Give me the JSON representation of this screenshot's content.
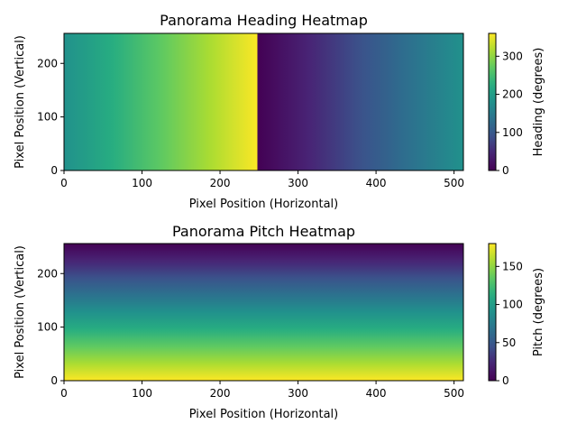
{
  "chart_data": [
    {
      "type": "heatmap",
      "title": "Panorama Heading Heatmap",
      "xlabel": "Pixel Position (Horizontal)",
      "ylabel": "Pixel Position (Vertical)",
      "xlim": [
        0,
        512
      ],
      "ylim": [
        0,
        256
      ],
      "xticks": [
        0,
        100,
        200,
        300,
        400,
        500
      ],
      "yticks": [
        0,
        100,
        200
      ],
      "colormap": "viridis",
      "gradient_direction": "horizontal",
      "color_profile": {
        "x": [
          0,
          248,
          248,
          512
        ],
        "value": [
          180,
          359,
          0,
          180
        ]
      },
      "colorbar": {
        "label": "Heading (degrees)",
        "range": [
          0,
          360
        ],
        "ticks": [
          0,
          100,
          200,
          300
        ]
      }
    },
    {
      "type": "heatmap",
      "title": "Panorama Pitch Heatmap",
      "xlabel": "Pixel Position (Horizontal)",
      "ylabel": "Pixel Position (Vertical)",
      "xlim": [
        0,
        512
      ],
      "ylim": [
        0,
        256
      ],
      "xticks": [
        0,
        100,
        200,
        300,
        400,
        500
      ],
      "yticks": [
        0,
        100,
        200
      ],
      "colormap": "viridis",
      "gradient_direction": "vertical",
      "color_profile": {
        "y": [
          0,
          256
        ],
        "value": [
          180,
          0
        ]
      },
      "colorbar": {
        "label": "Pitch (degrees)",
        "range": [
          0,
          180
        ],
        "ticks": [
          0,
          50,
          100,
          150
        ]
      }
    }
  ]
}
